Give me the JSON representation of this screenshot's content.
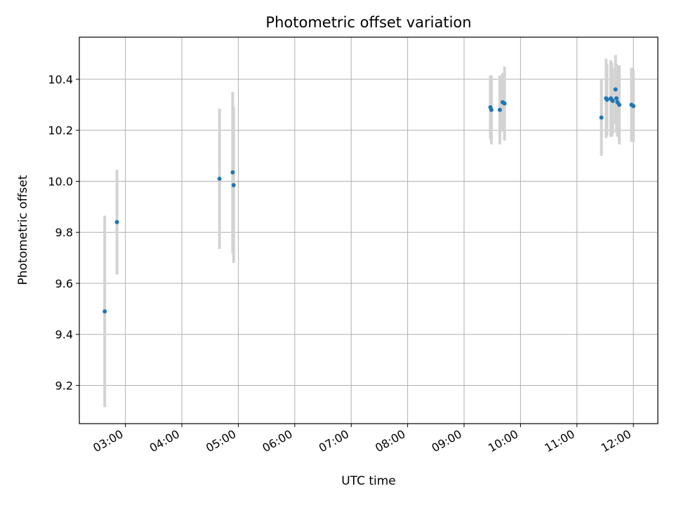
{
  "chart_data": {
    "type": "scatter",
    "title": "Photometric offset variation",
    "xlabel": "UTC time",
    "ylabel": "Photometric offset",
    "x_ticks": [
      "03:00",
      "04:00",
      "05:00",
      "06:00",
      "07:00",
      "08:00",
      "09:00",
      "10:00",
      "11:00",
      "12:00"
    ],
    "y_ticks": [
      "9.2",
      "9.4",
      "9.6",
      "9.8",
      "10.0",
      "10.2",
      "10.4"
    ],
    "xlim": [
      "02:11",
      "12:26"
    ],
    "ylim": [
      9.05,
      10.565
    ],
    "grid": true,
    "point_color": "#1f77b4",
    "errorbar_color": "#d3d3d3",
    "points": [
      {
        "x": "02:38",
        "y": 9.49,
        "err": 0.375
      },
      {
        "x": "02:51",
        "y": 9.84,
        "err": 0.205
      },
      {
        "x": "04:40",
        "y": 10.01,
        "err": 0.275
      },
      {
        "x": "04:54",
        "y": 10.035,
        "err": 0.315
      },
      {
        "x": "04:55",
        "y": 9.985,
        "err": 0.305
      },
      {
        "x": "09:28",
        "y": 10.29,
        "err": 0.125
      },
      {
        "x": "09:29",
        "y": 10.28,
        "err": 0.135
      },
      {
        "x": "09:38",
        "y": 10.28,
        "err": 0.135
      },
      {
        "x": "09:41",
        "y": 10.31,
        "err": 0.115
      },
      {
        "x": "09:43",
        "y": 10.305,
        "err": 0.145
      },
      {
        "x": "11:26",
        "y": 10.25,
        "err": 0.15
      },
      {
        "x": "11:31",
        "y": 10.325,
        "err": 0.155
      },
      {
        "x": "11:32",
        "y": 10.32,
        "err": 0.14
      },
      {
        "x": "11:36",
        "y": 10.325,
        "err": 0.15
      },
      {
        "x": "11:37",
        "y": 10.32,
        "err": 0.145
      },
      {
        "x": "11:38",
        "y": 10.315,
        "err": 0.13
      },
      {
        "x": "11:41",
        "y": 10.36,
        "err": 0.135
      },
      {
        "x": "11:42",
        "y": 10.325,
        "err": 0.135
      },
      {
        "x": "11:43",
        "y": 10.31,
        "err": 0.135
      },
      {
        "x": "11:45",
        "y": 10.3,
        "err": 0.155
      },
      {
        "x": "11:58",
        "y": 10.3,
        "err": 0.145
      },
      {
        "x": "12:00",
        "y": 10.295,
        "err": 0.14
      }
    ]
  }
}
